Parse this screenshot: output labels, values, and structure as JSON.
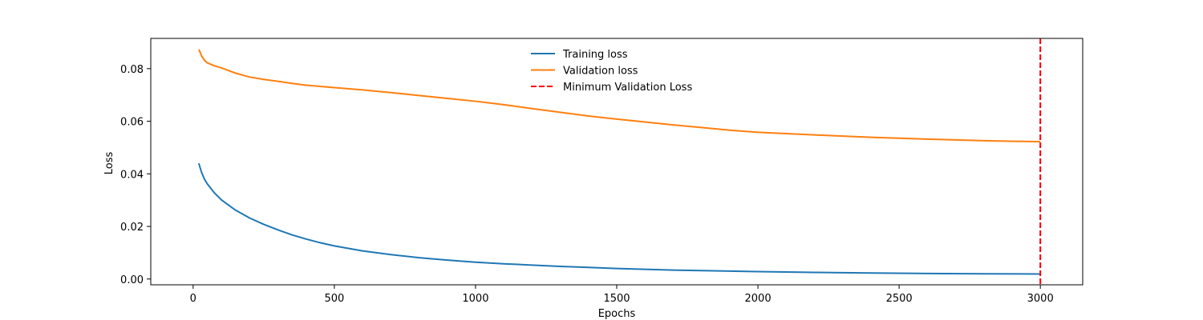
{
  "chart_data": {
    "type": "line",
    "title": "",
    "xlabel": "Epochs",
    "ylabel": "Loss",
    "xlim": [
      -150,
      3150
    ],
    "ylim": [
      -0.0022,
      0.0915
    ],
    "xticks": [
      0,
      500,
      1000,
      1500,
      2000,
      2500,
      3000
    ],
    "yticks": [
      0.0,
      0.02,
      0.04,
      0.06,
      0.08
    ],
    "ytick_labels": [
      "0.00",
      "0.02",
      "0.04",
      "0.06",
      "0.08"
    ],
    "grid": false,
    "legend_position": "top-center",
    "series": [
      {
        "name": "Training loss",
        "color": "#1f77b4",
        "style": "solid",
        "points": [
          [
            20,
            0.044
          ],
          [
            30,
            0.0405
          ],
          [
            40,
            0.038
          ],
          [
            50,
            0.0362
          ],
          [
            75,
            0.0328
          ],
          [
            100,
            0.0301
          ],
          [
            150,
            0.0262
          ],
          [
            200,
            0.0232
          ],
          [
            250,
            0.0208
          ],
          [
            300,
            0.0187
          ],
          [
            350,
            0.0168
          ],
          [
            400,
            0.0152
          ],
          [
            450,
            0.0138
          ],
          [
            500,
            0.0126
          ],
          [
            600,
            0.0107
          ],
          [
            700,
            0.0093
          ],
          [
            800,
            0.0081
          ],
          [
            900,
            0.0072
          ],
          [
            1000,
            0.0064
          ],
          [
            1100,
            0.0058
          ],
          [
            1200,
            0.0053
          ],
          [
            1300,
            0.0048
          ],
          [
            1400,
            0.0044
          ],
          [
            1500,
            0.004
          ],
          [
            1600,
            0.0037
          ],
          [
            1700,
            0.0034
          ],
          [
            1800,
            0.0032
          ],
          [
            1900,
            0.003
          ],
          [
            2000,
            0.0028
          ],
          [
            2200,
            0.0025
          ],
          [
            2400,
            0.0023
          ],
          [
            2600,
            0.0021
          ],
          [
            2800,
            0.002
          ],
          [
            3000,
            0.0019
          ]
        ]
      },
      {
        "name": "Validation loss",
        "color": "#ff7f0e",
        "style": "solid",
        "points": [
          [
            20,
            0.0873
          ],
          [
            25,
            0.0862
          ],
          [
            30,
            0.0848
          ],
          [
            40,
            0.0832
          ],
          [
            50,
            0.0822
          ],
          [
            75,
            0.0811
          ],
          [
            100,
            0.0803
          ],
          [
            150,
            0.0783
          ],
          [
            200,
            0.0768
          ],
          [
            250,
            0.0759
          ],
          [
            300,
            0.0752
          ],
          [
            350,
            0.0744
          ],
          [
            400,
            0.0737
          ],
          [
            500,
            0.0728
          ],
          [
            600,
            0.0719
          ],
          [
            700,
            0.0709
          ],
          [
            800,
            0.0698
          ],
          [
            900,
            0.0687
          ],
          [
            1000,
            0.0676
          ],
          [
            1100,
            0.0663
          ],
          [
            1200,
            0.0648
          ],
          [
            1300,
            0.0634
          ],
          [
            1400,
            0.062
          ],
          [
            1500,
            0.0608
          ],
          [
            1600,
            0.0597
          ],
          [
            1700,
            0.0586
          ],
          [
            1800,
            0.0576
          ],
          [
            1900,
            0.0566
          ],
          [
            2000,
            0.0558
          ],
          [
            2200,
            0.0548
          ],
          [
            2400,
            0.0539
          ],
          [
            2600,
            0.0532
          ],
          [
            2800,
            0.0526
          ],
          [
            3000,
            0.0522
          ]
        ]
      },
      {
        "name": "Minimum Validation Loss",
        "color": "#ff0000",
        "style": "dashed",
        "type": "vline",
        "x": 3000
      }
    ]
  }
}
